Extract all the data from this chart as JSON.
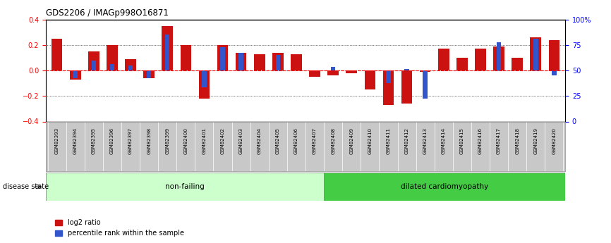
{
  "title": "GDS2206 / IMAGp998O16871",
  "samples": [
    "GSM82393",
    "GSM82394",
    "GSM82395",
    "GSM82396",
    "GSM82397",
    "GSM82398",
    "GSM82399",
    "GSM82400",
    "GSM82401",
    "GSM82402",
    "GSM82403",
    "GSM82404",
    "GSM82405",
    "GSM82406",
    "GSM82407",
    "GSM82408",
    "GSM82409",
    "GSM82410",
    "GSM82411",
    "GSM82412",
    "GSM82413",
    "GSM82414",
    "GSM82415",
    "GSM82416",
    "GSM82417",
    "GSM82418",
    "GSM82419",
    "GSM82420"
  ],
  "log2_ratio": [
    0.25,
    -0.07,
    0.15,
    0.2,
    0.09,
    -0.06,
    0.35,
    0.2,
    -0.22,
    0.2,
    0.14,
    0.13,
    0.14,
    0.13,
    -0.05,
    -0.04,
    -0.02,
    -0.15,
    -0.27,
    -0.26,
    -0.01,
    0.17,
    0.1,
    0.17,
    0.19,
    0.1,
    0.26,
    0.24
  ],
  "percentile_rank_deviation": [
    0.0,
    -0.06,
    0.08,
    0.05,
    0.04,
    -0.06,
    0.28,
    0.0,
    -0.13,
    0.18,
    0.14,
    0.0,
    0.12,
    0.0,
    0.0,
    0.03,
    0.0,
    0.0,
    -0.1,
    0.01,
    -0.22,
    0.0,
    0.0,
    0.0,
    0.22,
    0.0,
    0.25,
    -0.04
  ],
  "non_failing_count": 15,
  "group1_label": "non-failing",
  "group2_label": "dilated cardiomyopathy",
  "disease_state_label": "disease state",
  "ylim": [
    -0.4,
    0.4
  ],
  "yticks_left": [
    -0.4,
    -0.2,
    0.0,
    0.2,
    0.4
  ],
  "yticks_right_pct": [
    0,
    25,
    50,
    75,
    100
  ],
  "yticks_right_pos": [
    -0.4,
    -0.2,
    0.0,
    0.2,
    0.4
  ],
  "bar_color_red": "#cc1111",
  "bar_color_blue": "#3355cc",
  "group1_color": "#ccffcc",
  "group2_color": "#44cc44",
  "tick_bg_color": "#c8c8c8",
  "legend_log2": "log2 ratio",
  "legend_pct": "percentile rank within the sample",
  "red_bar_width": 0.6,
  "blue_bar_width": 0.25
}
